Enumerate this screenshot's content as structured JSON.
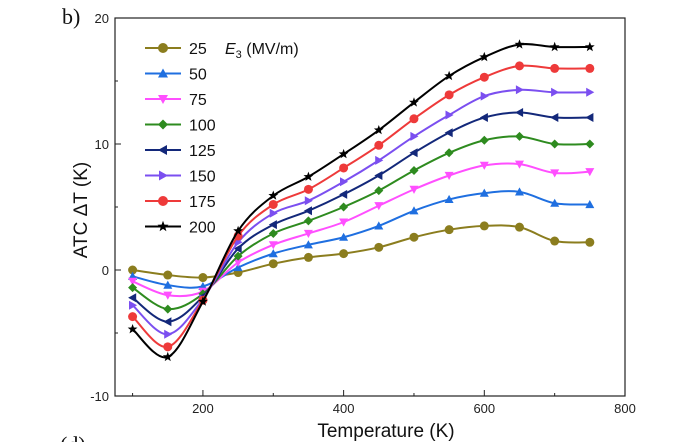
{
  "panel_label": "b)",
  "panel_label_cut": "(d)",
  "chart_data": {
    "type": "line",
    "title": "",
    "xlabel": "Temperature (K)",
    "ylabel": "ATC ΔT (K)",
    "xlim": [
      75,
      800
    ],
    "ylim": [
      -10,
      20
    ],
    "xticks": [
      200,
      400,
      600,
      800
    ],
    "yticks": [
      -10,
      0,
      10,
      20
    ],
    "legend": {
      "title_symbol": "E",
      "title_subscript": "3",
      "title_units": " (MV/m)",
      "placement": "top-left"
    },
    "x": [
      100,
      150,
      200,
      250,
      300,
      350,
      400,
      450,
      500,
      550,
      600,
      650,
      700,
      750
    ],
    "series": [
      {
        "name": "25",
        "color": "#8b7d1e",
        "marker": "circle",
        "values": [
          0.0,
          -0.4,
          -0.6,
          -0.2,
          0.5,
          1.0,
          1.3,
          1.8,
          2.6,
          3.2,
          3.5,
          3.4,
          2.3,
          2.2
        ]
      },
      {
        "name": "50",
        "color": "#1f6fe0",
        "marker": "triangle-up",
        "values": [
          -0.5,
          -1.2,
          -1.3,
          0.2,
          1.3,
          2.0,
          2.6,
          3.5,
          4.7,
          5.6,
          6.1,
          6.2,
          5.3,
          5.2
        ]
      },
      {
        "name": "75",
        "color": "#ff4fff",
        "marker": "triangle-down",
        "values": [
          -0.9,
          -2.0,
          -1.7,
          0.6,
          2.0,
          2.9,
          3.8,
          5.1,
          6.4,
          7.5,
          8.3,
          8.4,
          7.7,
          7.8
        ]
      },
      {
        "name": "100",
        "color": "#2e8b1f",
        "marker": "diamond",
        "values": [
          -1.4,
          -3.1,
          -1.9,
          1.1,
          2.9,
          3.9,
          5.0,
          6.3,
          7.9,
          9.3,
          10.3,
          10.6,
          10.0,
          10.0
        ]
      },
      {
        "name": "125",
        "color": "#13287a",
        "marker": "triangle-left",
        "values": [
          -2.2,
          -4.1,
          -2.1,
          1.7,
          3.6,
          4.7,
          6.0,
          7.5,
          9.3,
          10.9,
          12.1,
          12.5,
          12.1,
          12.1
        ]
      },
      {
        "name": "150",
        "color": "#7b4ff0",
        "marker": "triangle-right",
        "values": [
          -2.8,
          -5.1,
          -2.3,
          2.2,
          4.5,
          5.5,
          7.0,
          8.7,
          10.6,
          12.3,
          13.8,
          14.3,
          14.1,
          14.1
        ]
      },
      {
        "name": "175",
        "color": "#ee3a3a",
        "marker": "circle",
        "values": [
          -3.7,
          -6.1,
          -2.4,
          2.7,
          5.2,
          6.4,
          8.1,
          9.9,
          12.0,
          13.9,
          15.3,
          16.2,
          16.0,
          16.0
        ]
      },
      {
        "name": "200",
        "color": "#000000",
        "marker": "star",
        "values": [
          -4.7,
          -6.9,
          -2.5,
          3.1,
          5.9,
          7.4,
          9.2,
          11.1,
          13.3,
          15.4,
          16.9,
          17.9,
          17.7,
          17.7
        ]
      }
    ]
  }
}
